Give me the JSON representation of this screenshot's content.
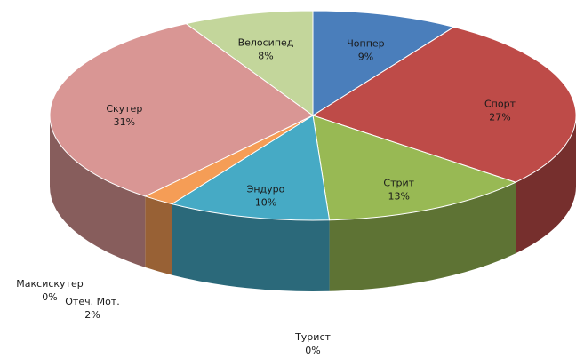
{
  "chart_data": {
    "type": "pie",
    "title": "",
    "style": "3d-tilted",
    "slices": [
      {
        "label": "Чоппер",
        "value": 9,
        "display": "9%",
        "color": "#4a7ebb"
      },
      {
        "label": "Спорт",
        "value": 27,
        "display": "27%",
        "color": "#be4b48"
      },
      {
        "label": "Стрит",
        "value": 13,
        "display": "13%",
        "color": "#98b954"
      },
      {
        "label": "Турист",
        "value": 0,
        "display": "0%",
        "color": "#7d60a0"
      },
      {
        "label": "Эндуро",
        "value": 10,
        "display": "10%",
        "color": "#46aac5"
      },
      {
        "label": "Отеч. Мот.",
        "value": 2,
        "display": "2%",
        "color": "#f59d56"
      },
      {
        "label": "Максискутер",
        "value": 0,
        "display": "0%",
        "color": "#2c4d75"
      },
      {
        "label": "Скутер",
        "value": 31,
        "display": "31%",
        "color": "#d99694"
      },
      {
        "label": "Велосипед",
        "value": 8,
        "display": "8%",
        "color": "#c3d69b"
      }
    ]
  }
}
